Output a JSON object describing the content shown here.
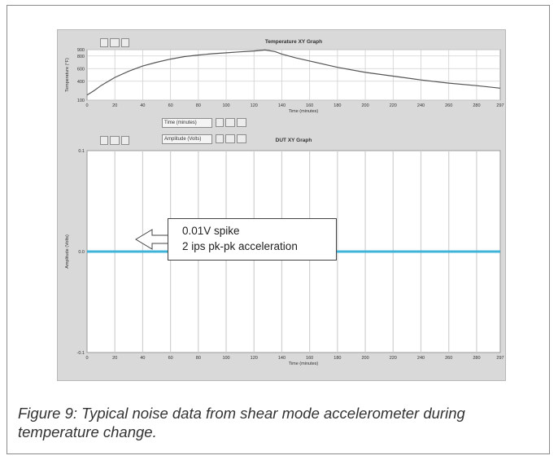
{
  "caption": "Figure 9: Typical noise data from shear mode accelerometer during temperature change.",
  "callout": {
    "line1": "0.01V spike",
    "line2": "2 ips pk-pk acceleration"
  },
  "controls": {
    "time_label": "Time (minutes)",
    "amplitude_label": "Amplitude (Volts)"
  },
  "colors": {
    "panel": "#d9d9d9",
    "plot_bg": "#ffffff",
    "temp_trace": "#555555",
    "noise_trace": "#3fb4d8",
    "grid": "#d0d0d0"
  },
  "chart_data": [
    {
      "type": "line",
      "title": "Temperature XY Graph",
      "xlabel": "Time (minutes)",
      "ylabel": "Temperature (°F)",
      "xlim": [
        0,
        297
      ],
      "ylim": [
        100,
        900
      ],
      "xticks": [
        0,
        20,
        40,
        60,
        80,
        100,
        120,
        140,
        160,
        180,
        200,
        220,
        240,
        260,
        280,
        297
      ],
      "yticks": [
        100,
        400,
        600,
        800,
        900
      ],
      "ytick_labels": [
        "100",
        "400",
        "600",
        "800",
        "900"
      ],
      "grid": true,
      "series": [
        {
          "x": [
            0,
            5,
            10,
            20,
            30,
            40,
            50,
            60,
            70,
            80,
            90,
            100,
            110,
            120,
            128,
            135,
            140,
            150,
            160,
            180,
            200,
            220,
            240,
            260,
            280,
            297
          ],
          "y": [
            180,
            250,
            330,
            460,
            560,
            640,
            700,
            750,
            790,
            815,
            835,
            850,
            865,
            880,
            895,
            870,
            830,
            770,
            720,
            620,
            540,
            480,
            420,
            370,
            330,
            290
          ]
        }
      ]
    },
    {
      "type": "line",
      "title": "DUT XY Graph",
      "xlabel": "Time (minutes)",
      "ylabel": "Amplitude (Volts)",
      "xlim": [
        0,
        297
      ],
      "ylim": [
        -0.1,
        0.1
      ],
      "xticks": [
        0,
        20,
        40,
        60,
        80,
        100,
        120,
        140,
        160,
        180,
        200,
        220,
        240,
        260,
        280,
        297
      ],
      "yticks": [
        -0.1,
        0.0,
        0.1
      ],
      "ytick_labels": [
        "-0.1",
        "0.0",
        "0.1"
      ],
      "grid": true,
      "series": [
        {
          "x": [
            0,
            297
          ],
          "y": [
            0.0,
            0.0
          ]
        }
      ]
    }
  ]
}
